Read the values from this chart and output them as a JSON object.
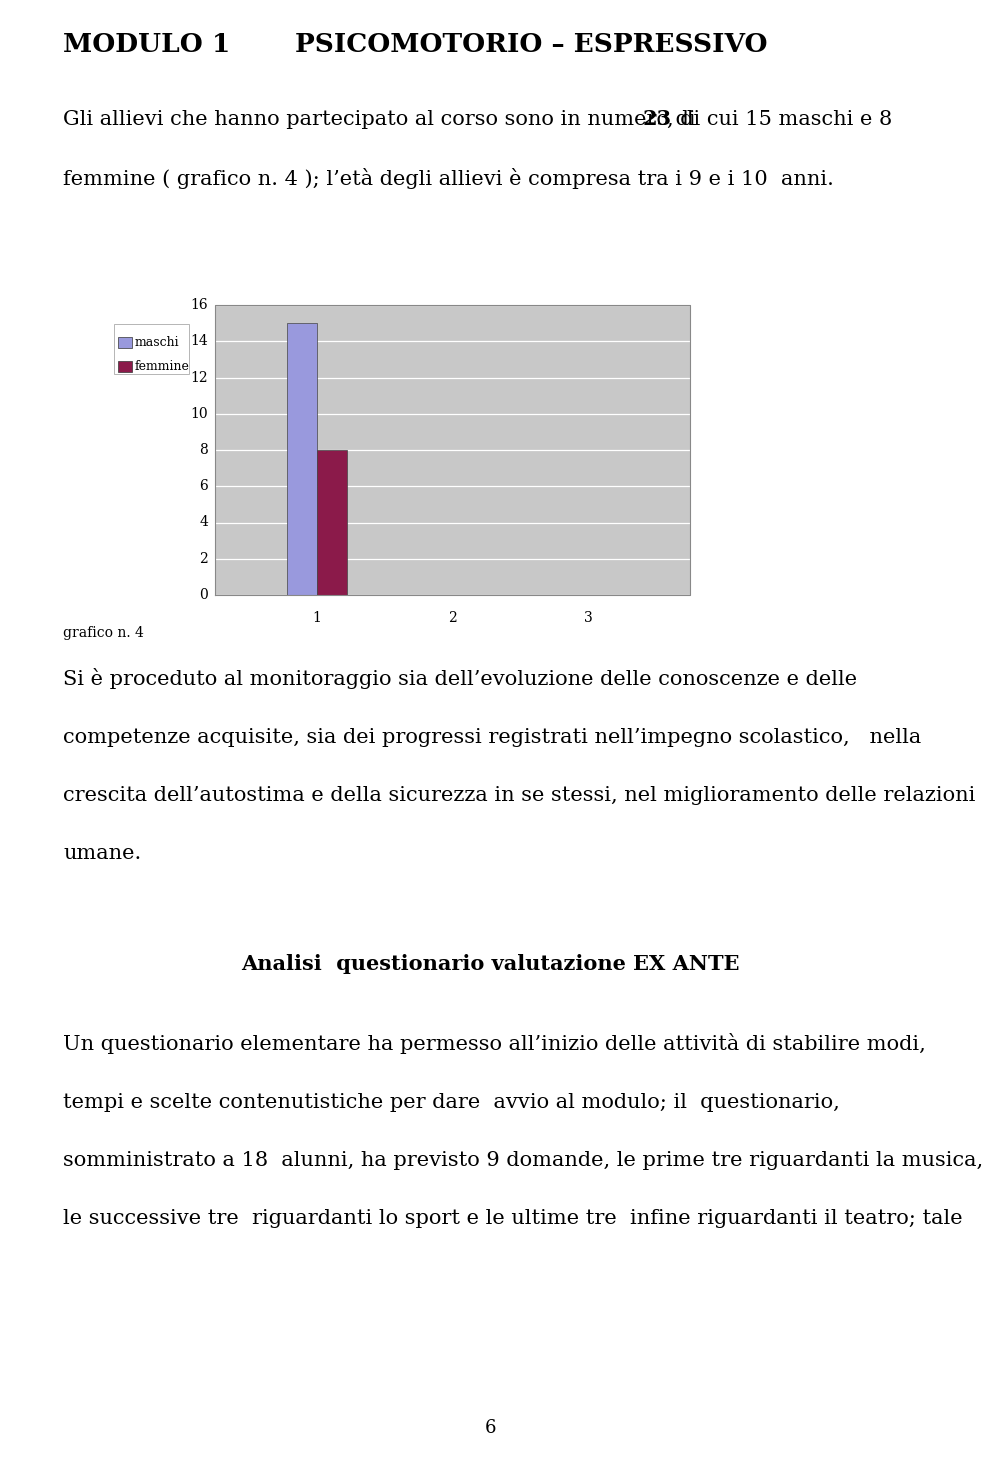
{
  "title_line1": "MODULO 1",
  "title_line2": "PSICOMOTORIO – ESPRESSIVO",
  "para1_pre": "Gli allievi che hanno partecipato al corso sono in numero di  ",
  "para1_bold": "23",
  "para1_post": ", di cui 15 maschi e 8",
  "para2": "femmine ( grafico n. 4 ); l’età degli allievi è compresa tra i 9 e i 10  anni.",
  "bar_maschi": [
    15,
    0,
    0
  ],
  "bar_femmine": [
    8,
    0,
    0
  ],
  "bar_color_maschi": "#9999dd",
  "bar_color_femmine": "#8b1a4a",
  "yticks": [
    0,
    2,
    4,
    6,
    8,
    10,
    12,
    14,
    16
  ],
  "xticks": [
    1,
    2,
    3
  ],
  "legend_maschi": "maschi",
  "legend_femmine": "femmine",
  "grafico_label": "grafico n. 4",
  "chart_bg": "#c8c8c8",
  "para3_lines": [
    "Si è proceduto al monitoraggio sia dell’evoluzione delle conoscenze e delle",
    "competenze acquisite, sia dei progressi registrati nell’impegno scolastico,   nella",
    "crescita dell’autostima e della sicurezza in se stessi, nel miglioramento delle relazioni",
    "umane."
  ],
  "section_title": "Analisi  questionario valutazione EX ANTE",
  "para4_lines": [
    "Un questionario elementare ha permesso all’inizio delle attività di stabilire modi,",
    "tempi e scelte contenutistiche per dare  avvio al modulo; il  questionario,",
    "somministrato a 18  alunni, ha previsto 9 domande, le prime tre riguardanti la musica,",
    "le successive tre  riguardanti lo sport e le ultime tre  infine riguardanti il teatro; tale"
  ],
  "page_number": "6",
  "bg_color": "#ffffff",
  "text_color": "#000000"
}
